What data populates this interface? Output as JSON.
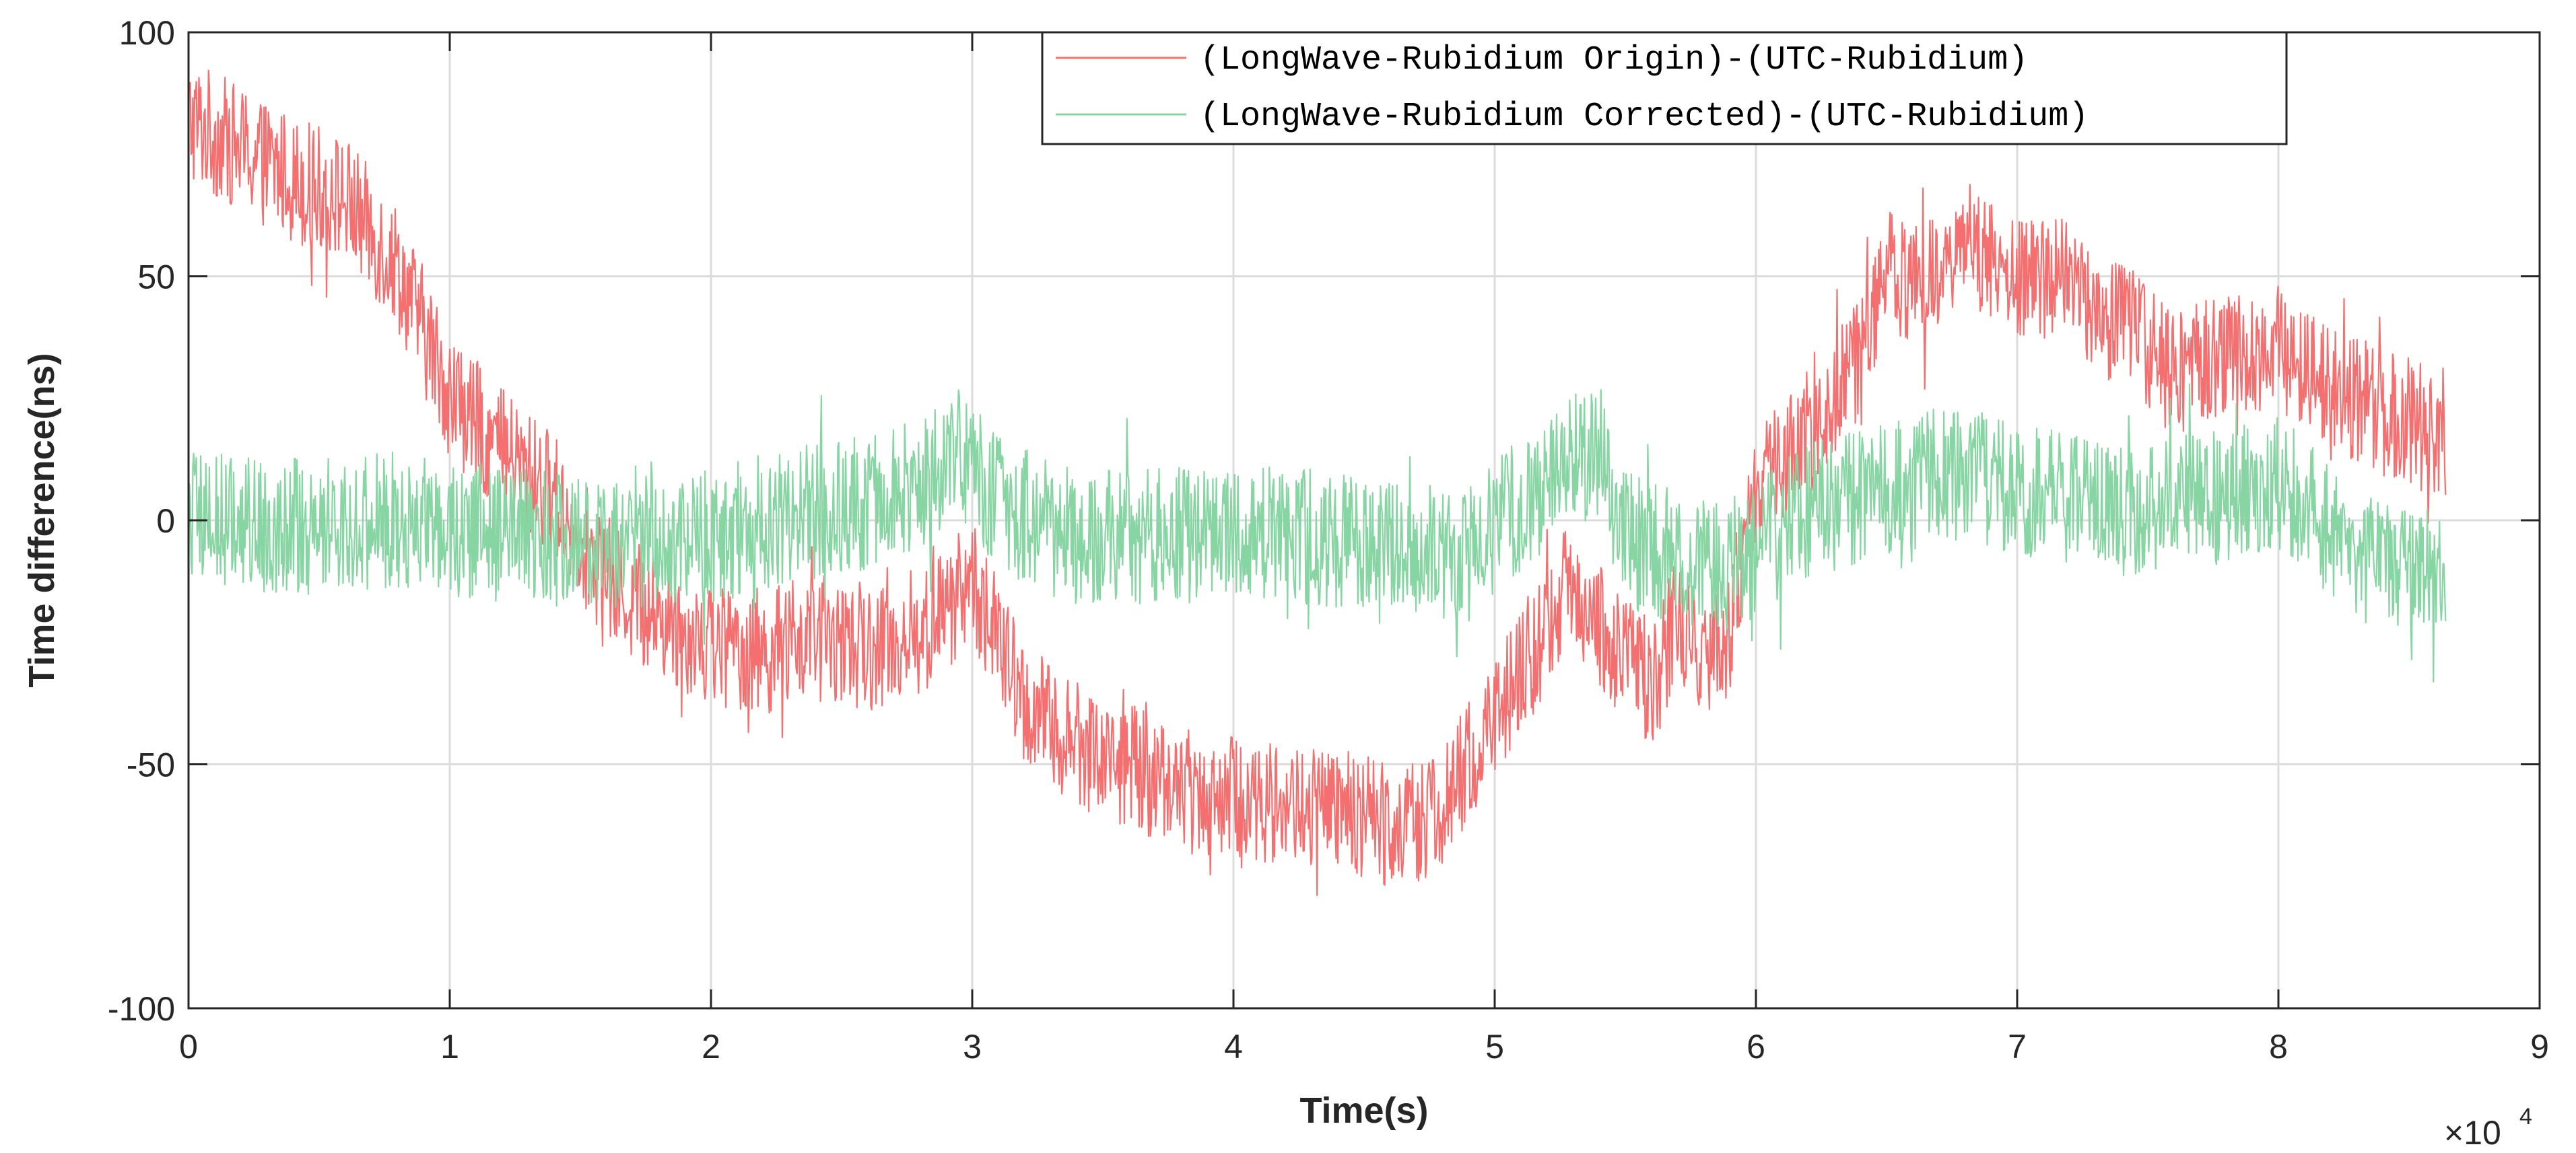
{
  "chart_data": {
    "type": "line",
    "title": "",
    "xlabel": "Time(s)",
    "ylabel": "Time difference(ns)",
    "x_exponent_label": "×10",
    "x_exponent": "4",
    "xlim": [
      0,
      90000
    ],
    "ylim": [
      -100,
      100
    ],
    "xticks": [
      0,
      10000,
      20000,
      30000,
      40000,
      50000,
      60000,
      70000,
      80000,
      90000
    ],
    "xtick_labels": [
      "0",
      "1",
      "2",
      "3",
      "4",
      "5",
      "6",
      "7",
      "8",
      "9"
    ],
    "yticks": [
      -100,
      -50,
      0,
      50,
      100
    ],
    "ytick_labels": [
      "-100",
      "-50",
      "0",
      "50",
      "100"
    ],
    "grid": true,
    "legend_position": "top-center",
    "x_end": 86400,
    "series": [
      {
        "name": "(LongWave-Rubidium Origin)-(UTC-Rubidium)",
        "color": "#f46f6f",
        "band_halfwidth_ns": 13,
        "x": [
          0,
          2000,
          4000,
          6000,
          8000,
          10000,
          12000,
          14000,
          16000,
          18000,
          20000,
          22000,
          24000,
          26000,
          28000,
          30000,
          32000,
          34000,
          36000,
          38000,
          40000,
          42000,
          44000,
          46000,
          48000,
          50000,
          52000,
          53000,
          54000,
          56000,
          57000,
          58000,
          59000,
          60000,
          62000,
          64000,
          65000,
          66000,
          68000,
          70000,
          72000,
          73000,
          74000,
          76000,
          78000,
          80000,
          82000,
          84000,
          86400
        ],
        "mean": [
          82,
          76,
          70,
          66,
          52,
          26,
          14,
          5,
          -12,
          -20,
          -25,
          -27,
          -24,
          -26,
          -24,
          -12,
          -38,
          -46,
          -50,
          -55,
          -57,
          -58,
          -60,
          -62,
          -60,
          -40,
          -22,
          -12,
          -22,
          -33,
          -20,
          -30,
          -22,
          5,
          18,
          33,
          53,
          48,
          58,
          48,
          52,
          40,
          42,
          30,
          34,
          35,
          28,
          22,
          18
        ]
      },
      {
        "name": "(LongWave-Rubidium Corrected)-(UTC-Rubidium)",
        "color": "#86d5a2",
        "band_halfwidth_ns": 14,
        "x": [
          0,
          4000,
          8000,
          12000,
          16000,
          20000,
          24000,
          26000,
          28000,
          29500,
          31000,
          34000,
          38000,
          42000,
          46000,
          48000,
          50000,
          52000,
          53000,
          54000,
          55000,
          57000,
          58000,
          60000,
          62000,
          64000,
          66000,
          68000,
          70000,
          72000,
          74000,
          76000,
          78000,
          80000,
          82000,
          84000,
          86400
        ],
        "mean": [
          0,
          -1,
          0,
          -3,
          -5,
          -3,
          2,
          4,
          8,
          14,
          4,
          -4,
          -3,
          -3,
          -5,
          -7,
          -2,
          8,
          14,
          12,
          -4,
          -8,
          -12,
          -6,
          2,
          5,
          8,
          10,
          6,
          5,
          2,
          4,
          5,
          8,
          -2,
          -10,
          -12
        ]
      }
    ]
  }
}
